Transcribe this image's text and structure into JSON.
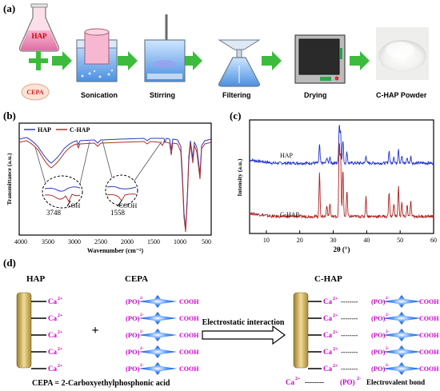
{
  "panels": {
    "a": "(a)",
    "b": "(b)",
    "c": "(c)",
    "d": "(d)"
  },
  "process": {
    "reagents": [
      "HAP",
      "CEPA"
    ],
    "steps": [
      "Sonication",
      "Stirring",
      "Filtering",
      "Drying",
      "C-HAP Powder"
    ],
    "arrow_color": "#3dbb3d"
  },
  "ftir": {
    "legend": [
      "HAP",
      "C-HAP"
    ],
    "ylabel": "Transmittance (a.u.)",
    "xlabel": "Wavenumber (cm⁻¹)",
    "xticks": [
      "4000",
      "3500",
      "3000",
      "2500",
      "2000",
      "1500",
      "1000",
      "500"
    ],
    "annotations": [
      {
        "wavenumber": "3748",
        "group": "-OH"
      },
      {
        "wavenumber": "1558",
        "group": "-COOH"
      }
    ],
    "colors": {
      "HAP": "#2f3bb8",
      "C-HAP": "#b03030"
    }
  },
  "chart_data": {
    "type": "line",
    "xlabel": "2θ (°)",
    "ylabel": "Intensity (a.u.)",
    "xlim": [
      5,
      60
    ],
    "xticks": [
      10,
      20,
      30,
      40,
      50,
      60
    ],
    "series": [
      {
        "name": "HAP",
        "color": "#2233cc",
        "baseline": 0.62,
        "peaks": [
          [
            25.9,
            0.16
          ],
          [
            28.1,
            0.05
          ],
          [
            29.0,
            0.06
          ],
          [
            31.8,
            0.34
          ],
          [
            32.2,
            0.28
          ],
          [
            32.9,
            0.2
          ],
          [
            34.1,
            0.1
          ],
          [
            39.8,
            0.07
          ],
          [
            46.7,
            0.11
          ],
          [
            48.1,
            0.06
          ],
          [
            49.5,
            0.13
          ],
          [
            50.5,
            0.06
          ],
          [
            52.1,
            0.05
          ],
          [
            53.2,
            0.06
          ]
        ]
      },
      {
        "name": "C-HAP",
        "color": "#b02020",
        "baseline": 0.15,
        "peaks": [
          [
            25.9,
            0.38
          ],
          [
            28.1,
            0.1
          ],
          [
            29.0,
            0.12
          ],
          [
            31.8,
            0.65
          ],
          [
            32.2,
            0.55
          ],
          [
            32.9,
            0.42
          ],
          [
            34.1,
            0.22
          ],
          [
            39.8,
            0.17
          ],
          [
            46.7,
            0.22
          ],
          [
            48.1,
            0.12
          ],
          [
            49.5,
            0.26
          ],
          [
            50.5,
            0.12
          ],
          [
            52.1,
            0.1
          ],
          [
            53.2,
            0.13
          ]
        ]
      }
    ]
  },
  "scheme": {
    "hap_title": "HAP",
    "cepa_title": "CEPA",
    "chap_title": "C-HAP",
    "ion": "Ca",
    "ion_charge": "2+",
    "phosphonate": "(PO)",
    "phosphonate_charge": "2-",
    "acid": "COOH",
    "plus": "+",
    "arrow_text": "Electrostatic interaction",
    "dashes": "--------",
    "definition": "CEPA = 2-Carboxyethylphosphonic acid",
    "bond_legend": "Electrovalent bond",
    "colors": {
      "ion": "#cc00cc",
      "carbon": "#1a6ee8",
      "rod": "#c9a646"
    }
  }
}
